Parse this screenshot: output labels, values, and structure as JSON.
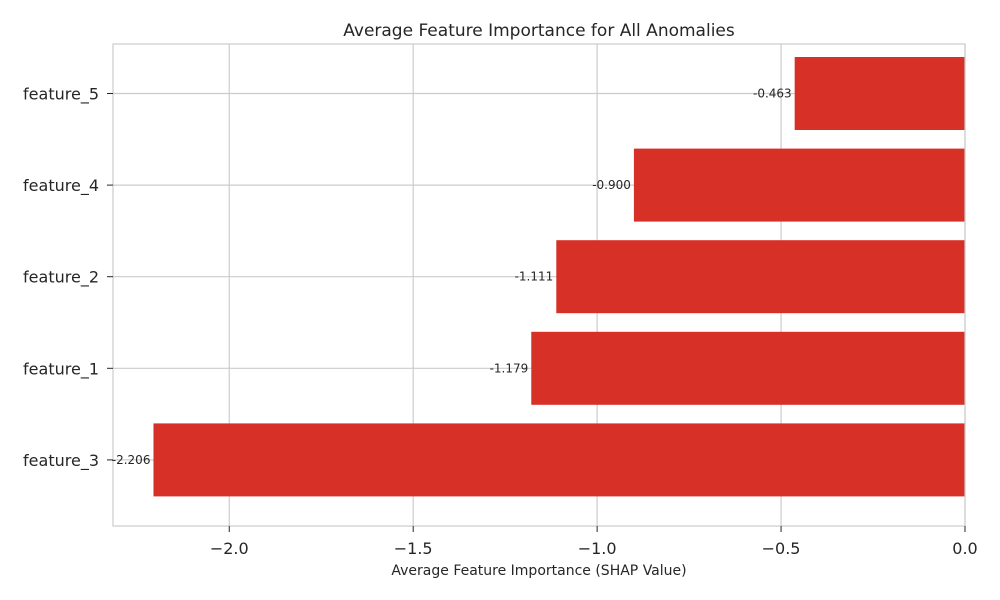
{
  "chart_data": {
    "type": "bar",
    "orientation": "horizontal",
    "title": "Average Feature Importance for All Anomalies",
    "xlabel": "Average Feature Importance (SHAP Value)",
    "ylabel": "",
    "categories": [
      "feature_3",
      "feature_1",
      "feature_2",
      "feature_4",
      "feature_5"
    ],
    "values": [
      -2.206,
      -1.179,
      -1.111,
      -0.9,
      -0.463
    ],
    "data_labels": [
      "-2.206",
      "-1.179",
      "-1.111",
      "-0.900",
      "-0.463"
    ],
    "xlim": [
      -2.316,
      0.0
    ],
    "xticks": [
      -2.0,
      -1.5,
      -1.0,
      -0.5,
      0.0
    ],
    "xtick_labels": [
      "−2.0",
      "−1.5",
      "−1.0",
      "−0.5",
      "0.0"
    ],
    "grid": true,
    "legend": "none",
    "colors": {
      "bar": "#d73027",
      "grid": "#cccccc",
      "axes": "#cccccc",
      "text": "#262626"
    }
  }
}
